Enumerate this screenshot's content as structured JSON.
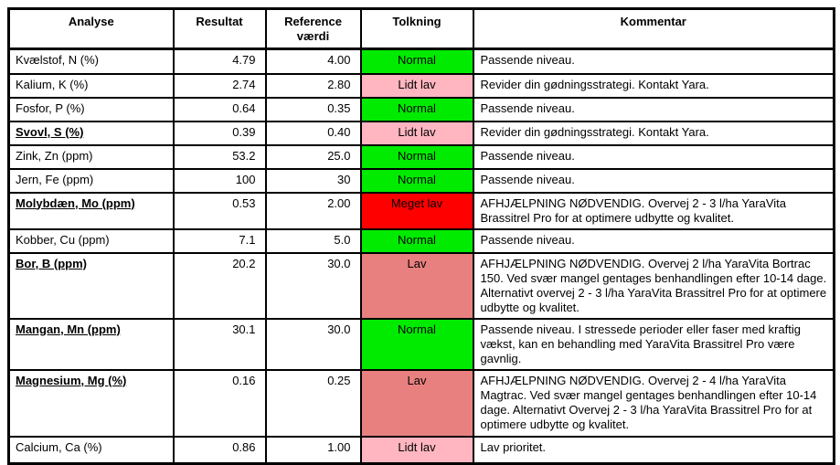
{
  "colors": {
    "status_normal": "#00EB00",
    "status_lidt_lav": "#FFB6C1",
    "status_lav": "#E98080",
    "status_meget_lav": "#FF0000",
    "border": "#000000",
    "text": "#000000",
    "page_background": "#FFFFFF"
  },
  "table": {
    "headers": {
      "analyse": "Analyse",
      "resultat": "Resultat",
      "reference": "Reference værdi",
      "tolkning": "Tolkning",
      "kommentar": "Kommentar"
    },
    "rows": [
      {
        "name": "Kvælstof, N (%)",
        "name_style": "plain",
        "resultat": "4.79",
        "reference": "4.00",
        "tolkning": "Normal",
        "status": "normal",
        "kommentar": "Passende niveau."
      },
      {
        "name": "Kalium, K (%)",
        "name_style": "plain",
        "resultat": "2.74",
        "reference": "2.80",
        "tolkning": "Lidt lav",
        "status": "lidt_lav",
        "kommentar": "Revider din gødningsstrategi. Kontakt Yara."
      },
      {
        "name": "Fosfor, P (%)",
        "name_style": "plain",
        "resultat": "0.64",
        "reference": "0.35",
        "tolkning": "Normal",
        "status": "normal",
        "kommentar": "Passende niveau."
      },
      {
        "name": "Svovl, S (%)",
        "name_style": "emph",
        "resultat": "0.39",
        "reference": "0.40",
        "tolkning": "Lidt lav",
        "status": "lidt_lav",
        "kommentar": "Revider din gødningsstrategi. Kontakt Yara."
      },
      {
        "name": "Zink, Zn (ppm)",
        "name_style": "plain",
        "resultat": "53.2",
        "reference": "25.0",
        "tolkning": "Normal",
        "status": "normal",
        "kommentar": "Passende niveau."
      },
      {
        "name": "Jern, Fe (ppm)",
        "name_style": "plain",
        "resultat": "100",
        "reference": "30",
        "tolkning": "Normal",
        "status": "normal",
        "kommentar": "Passende niveau."
      },
      {
        "name": "Molybdæn, Mo (ppm)",
        "name_style": "emph",
        "resultat": "0.53",
        "reference": "2.00",
        "tolkning": "Meget lav",
        "status": "meget_lav",
        "kommentar": "AFHJÆLPNING NØDVENDIG. Overvej 2 - 3 l/ha YaraVita Brassitrel Pro for at optimere udbytte og kvalitet."
      },
      {
        "name": "Kobber, Cu (ppm)",
        "name_style": "plain",
        "resultat": "7.1",
        "reference": "5.0",
        "tolkning": "Normal",
        "status": "normal",
        "kommentar": "Passende niveau."
      },
      {
        "name": "Bor, B (ppm)",
        "name_style": "emph",
        "resultat": "20.2",
        "reference": "30.0",
        "tolkning": "Lav",
        "status": "lav",
        "kommentar": "AFHJÆLPNING NØDVENDIG. Overvej 2 l/ha YaraVita Bortrac 150.  Ved svær mangel gentages benhandlingen efter 10-14 dage.  Alternativt overvej 2 - 3 l/ha YaraVita Brassitrel Pro for at optimere udbytte og kvalitet."
      },
      {
        "name": "Mangan, Mn (ppm)",
        "name_style": "emph",
        "resultat": "30.1",
        "reference": "30.0",
        "tolkning": "Normal",
        "status": "normal",
        "kommentar": "Passende niveau.  I stressede perioder eller faser med kraftig vækst, kan en behandling med YaraVita Brassitrel Pro være gavnlig."
      },
      {
        "name": "Magnesium, Mg (%)",
        "name_style": "emph",
        "resultat": "0.16",
        "reference": "0.25",
        "tolkning": "Lav",
        "status": "lav",
        "kommentar": "AFHJÆLPNING NØDVENDIG. Overvej 2 - 4 l/ha YaraVita Magtrac.  Ved svær mangel gentages benhandlingen efter 10-14 dage.  Alternativt Overvej 2 - 3 l/ha YaraVita Brassitrel Pro for at optimere udbytte og kvalitet."
      },
      {
        "name": "Calcium, Ca (%)",
        "name_style": "plain",
        "resultat": "0.86",
        "reference": "1.00",
        "tolkning": "Lidt lav",
        "status": "lidt_lav",
        "kommentar": "Lav prioritet."
      }
    ]
  }
}
